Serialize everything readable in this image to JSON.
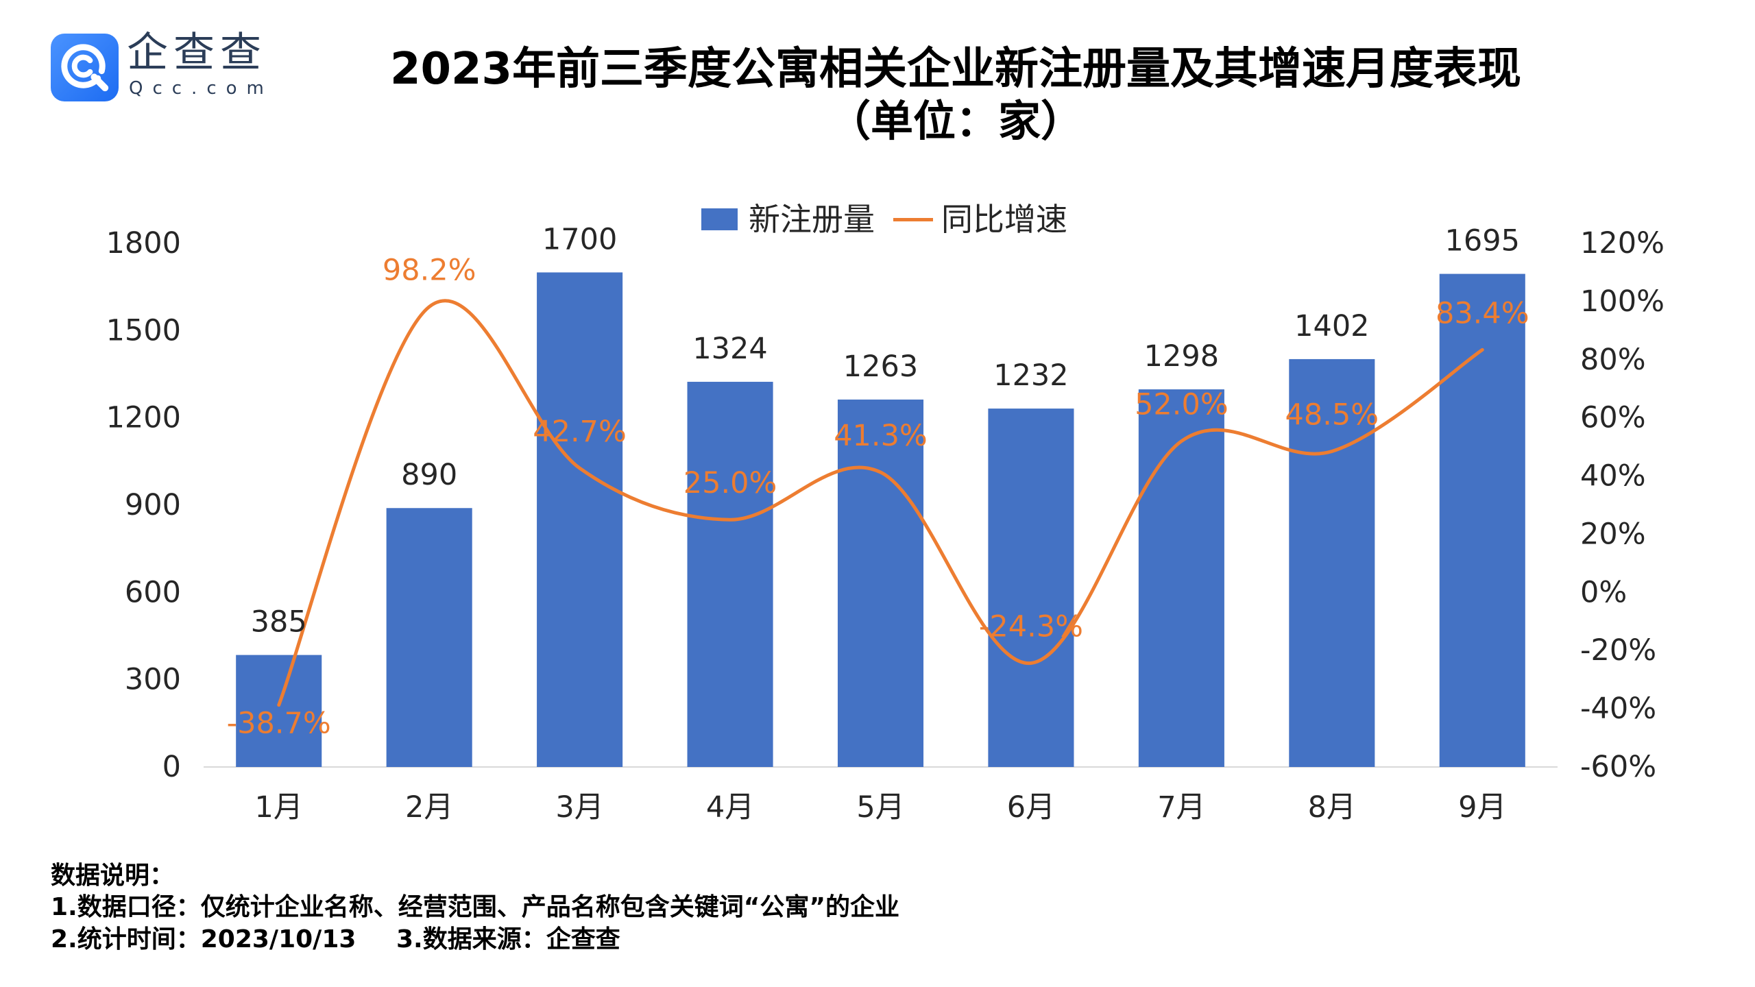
{
  "logo": {
    "name": "企查查",
    "domain": "Qcc.com",
    "icon": "qcc-logo-icon",
    "color": "#2D7CF6"
  },
  "chart_data": {
    "type": "bar",
    "title": "2023年前三季度公寓相关企业新注册量及其增速月度表现",
    "subtitle": "（单位：家）",
    "categories": [
      "1月",
      "2月",
      "3月",
      "4月",
      "5月",
      "6月",
      "7月",
      "8月",
      "9月"
    ],
    "series": [
      {
        "name": "新注册量",
        "type": "bar",
        "axis": "left",
        "color": "#4472C4",
        "values": [
          385,
          890,
          1700,
          1324,
          1263,
          1232,
          1298,
          1402,
          1695
        ]
      },
      {
        "name": "同比增速",
        "type": "line",
        "axis": "right",
        "smooth": true,
        "unit": "%",
        "color": "#ED7D31",
        "values": [
          -38.7,
          98.2,
          42.7,
          25.0,
          41.3,
          -24.3,
          52.0,
          48.5,
          83.4
        ]
      }
    ],
    "ylim": [
      0,
      1800
    ],
    "y_ticks": [
      0,
      300,
      600,
      900,
      1200,
      1500,
      1800
    ],
    "y2lim": [
      -60,
      120
    ],
    "y2_ticks": [
      -60,
      -40,
      -20,
      0,
      20,
      40,
      60,
      80,
      100,
      120
    ],
    "legend": "top",
    "grid": false,
    "axis_line_color": "#D9D9D9"
  },
  "notes": {
    "heading": "数据说明：",
    "scope": "1.数据口径：仅统计企业名称、经营范围、产品名称包含关键词“公寓”的企业",
    "time": "2.统计时间：2023/10/13",
    "source": "3.数据来源：企查查"
  }
}
